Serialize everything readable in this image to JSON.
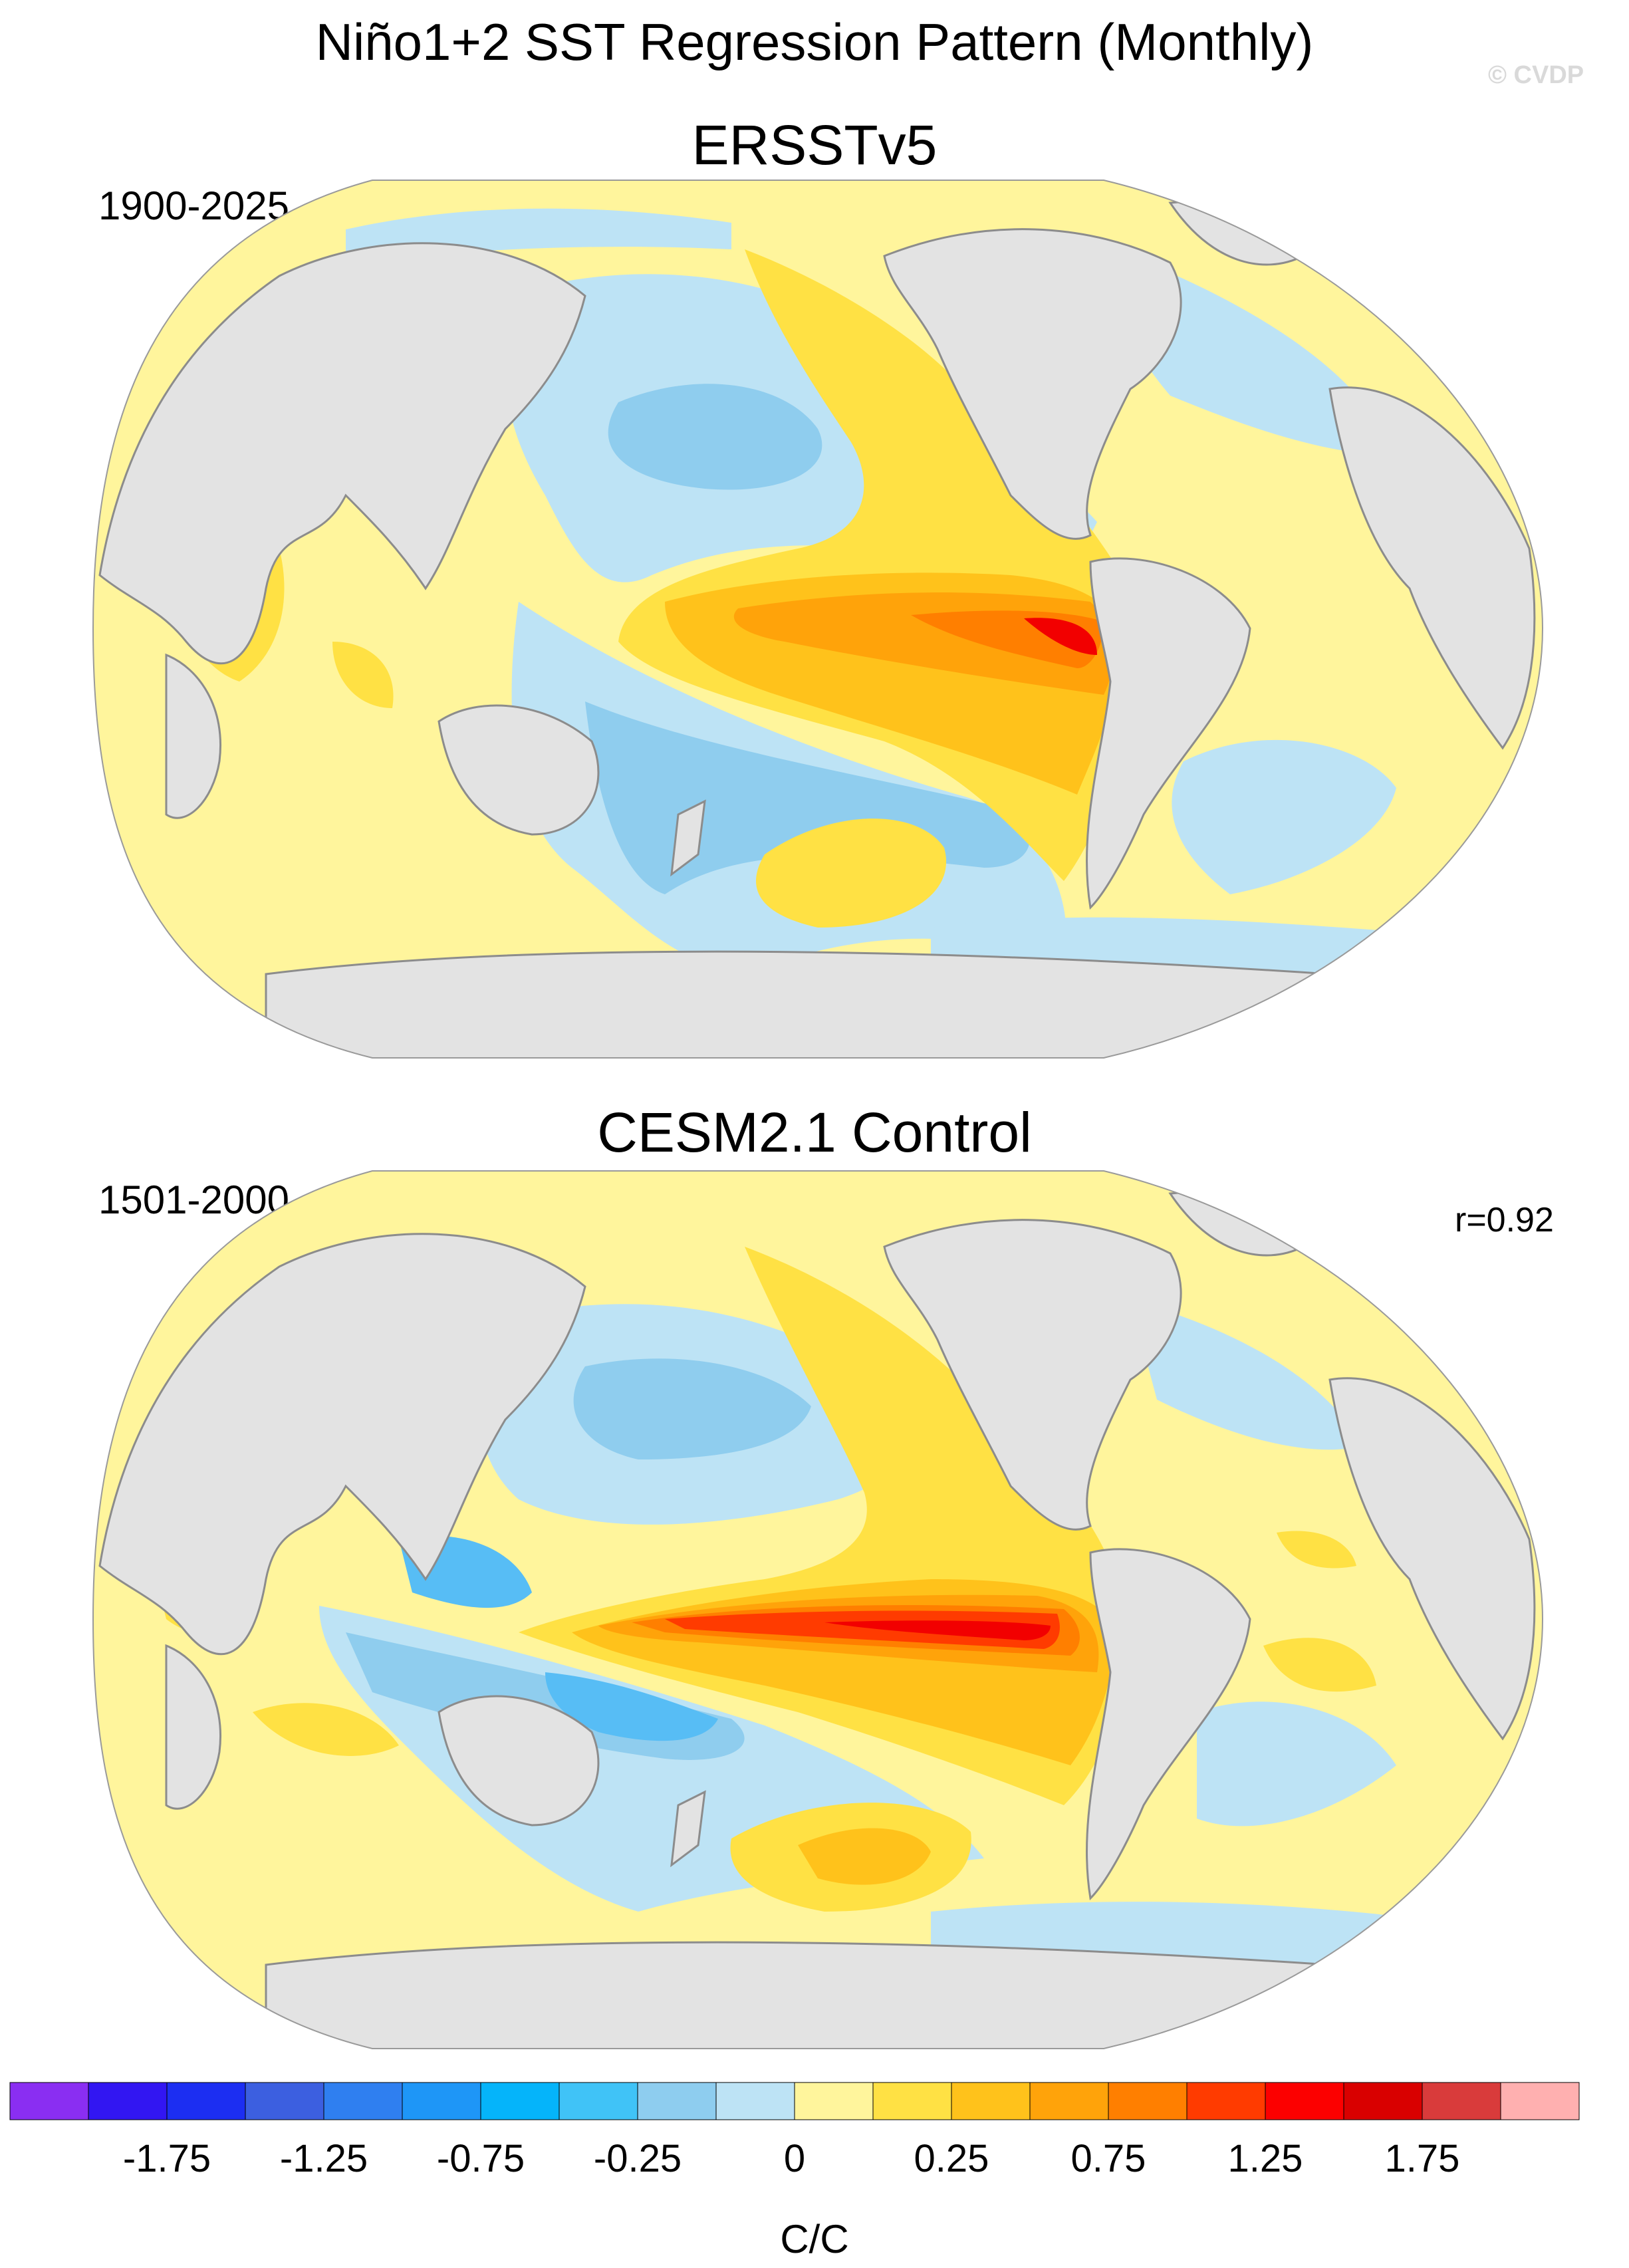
{
  "title": "Niño1+2 SST Regression Pattern (Monthly)",
  "watermark": "© CVDP",
  "colors": {
    "land": "#e3e3e3",
    "coast": "#8c8c8c",
    "neg_light": "#bde3f5",
    "neg_mid": "#8fcdee",
    "neg_strong": "#57bdf5",
    "pos_light": "#fff59c",
    "pos_mid": "#ffe144",
    "pos_strong": "#ffc21b",
    "pos_orange": "#ffa30a",
    "pos_deep": "#ff7f00",
    "pos_red": "#ff3b00",
    "pos_max": "#f20000"
  },
  "panels": [
    {
      "id": "ersst",
      "title": "ERSSTv5",
      "period": "1900-2025",
      "stat": ""
    },
    {
      "id": "cesm",
      "title": "CESM2.1 Control",
      "period": "1501-2000",
      "stat": "r=0.92"
    }
  ],
  "colorbar": {
    "unit": "C/C",
    "labels": [
      "-1.75",
      "-1.25",
      "-0.75",
      "-0.25",
      "0",
      "0.25",
      "0.75",
      "1.25",
      "1.75"
    ],
    "colors": [
      "#8a2ef2",
      "#3216f2",
      "#1c2ef2",
      "#3c5fe0",
      "#2f7ff0",
      "#1e96f7",
      "#05b4fa",
      "#40c3f7",
      "#8ecdef",
      "#bde3f5",
      "#fff59c",
      "#ffe144",
      "#ffc21b",
      "#ffa30a",
      "#ff7f00",
      "#ff3b00",
      "#fc0000",
      "#d90000",
      "#d93b3b",
      "#ffb0b0"
    ]
  }
}
